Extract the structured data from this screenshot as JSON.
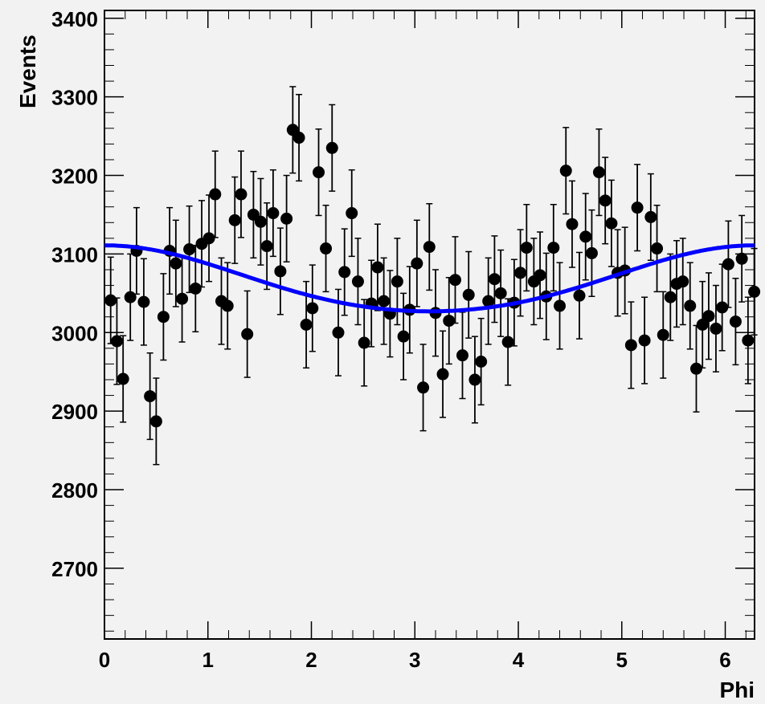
{
  "chart_data": {
    "type": "scatter",
    "title": "",
    "xlabel": "Phi",
    "ylabel": "Events",
    "xlim": [
      0,
      6.2832
    ],
    "ylim": [
      2610,
      3410
    ],
    "xticks": [
      "0",
      "1",
      "2",
      "3",
      "4",
      "5",
      "6"
    ],
    "yticks": [
      "2700",
      "2800",
      "2900",
      "3000",
      "3100",
      "3200",
      "3300",
      "3400"
    ],
    "grid": false,
    "legend": "none",
    "colors": {
      "points": "#000000",
      "fit": "#0000ff",
      "background": "#f2f2f2"
    },
    "series": [
      {
        "x": [
          0.06,
          0.12,
          0.18,
          0.25,
          0.31,
          0.38,
          0.44,
          0.5,
          0.57,
          0.63,
          0.69,
          0.75,
          0.82,
          0.88,
          0.94,
          1.01,
          1.07,
          1.13,
          1.19,
          1.26,
          1.32,
          1.38,
          1.44,
          1.51,
          1.57,
          1.63,
          1.7,
          1.76,
          1.82,
          1.88,
          1.95,
          2.01,
          2.07,
          2.14,
          2.2,
          2.26,
          2.32,
          2.39,
          2.45,
          2.51,
          2.58,
          2.64,
          2.7,
          2.76,
          2.83,
          2.89,
          2.95,
          3.02,
          3.08,
          3.14,
          3.2,
          3.27,
          3.33,
          3.39,
          3.46,
          3.52,
          3.58,
          3.64,
          3.71,
          3.77,
          3.83,
          3.9,
          3.96,
          4.02,
          4.08,
          4.15,
          4.21,
          4.27,
          4.34,
          4.4,
          4.46,
          4.52,
          4.59,
          4.65,
          4.71,
          4.78,
          4.84,
          4.9,
          4.96,
          5.03,
          5.09,
          5.15,
          5.22,
          5.28,
          5.34,
          5.4,
          5.47,
          5.53,
          5.59,
          5.66,
          5.72,
          5.78,
          5.84,
          5.91,
          5.97,
          6.03,
          6.1,
          6.16,
          6.22,
          6.28
        ],
        "y": [
          3041,
          2989,
          2941,
          3045,
          3104,
          3039,
          2919,
          2887,
          3020,
          3104,
          3088,
          3043,
          3106,
          3056,
          3113,
          3120,
          3176,
          3040,
          3034,
          3143,
          3176,
          2998,
          3150,
          3141,
          3110,
          3152,
          3078,
          3145,
          3258,
          3248,
          3010,
          3031,
          3204,
          3107,
          3235,
          3000,
          3077,
          3152,
          3065,
          2987,
          3037,
          3083,
          3040,
          3024,
          3065,
          2995,
          3029,
          3088,
          2930,
          3109,
          3025,
          2947,
          3015,
          3067,
          2971,
          3048,
          2940,
          2963,
          3040,
          3068,
          3050,
          2988,
          3038,
          3076,
          3108,
          3065,
          3073,
          3046,
          3108,
          3034,
          3206,
          3138,
          3047,
          3122,
          3101,
          3204,
          3168,
          3139,
          3076,
          3079,
          2984,
          3159,
          2990,
          3147,
          3107,
          2997,
          3045,
          3062,
          3065,
          3034,
          2954,
          3010,
          3021,
          3005,
          3032,
          3087,
          3014,
          3094,
          2990,
          3052
        ],
        "errors": 55
      }
    ],
    "fit": {
      "name": "",
      "function": "3066 + 42*cos(phi) + 3*cos(2*phi)"
    }
  }
}
